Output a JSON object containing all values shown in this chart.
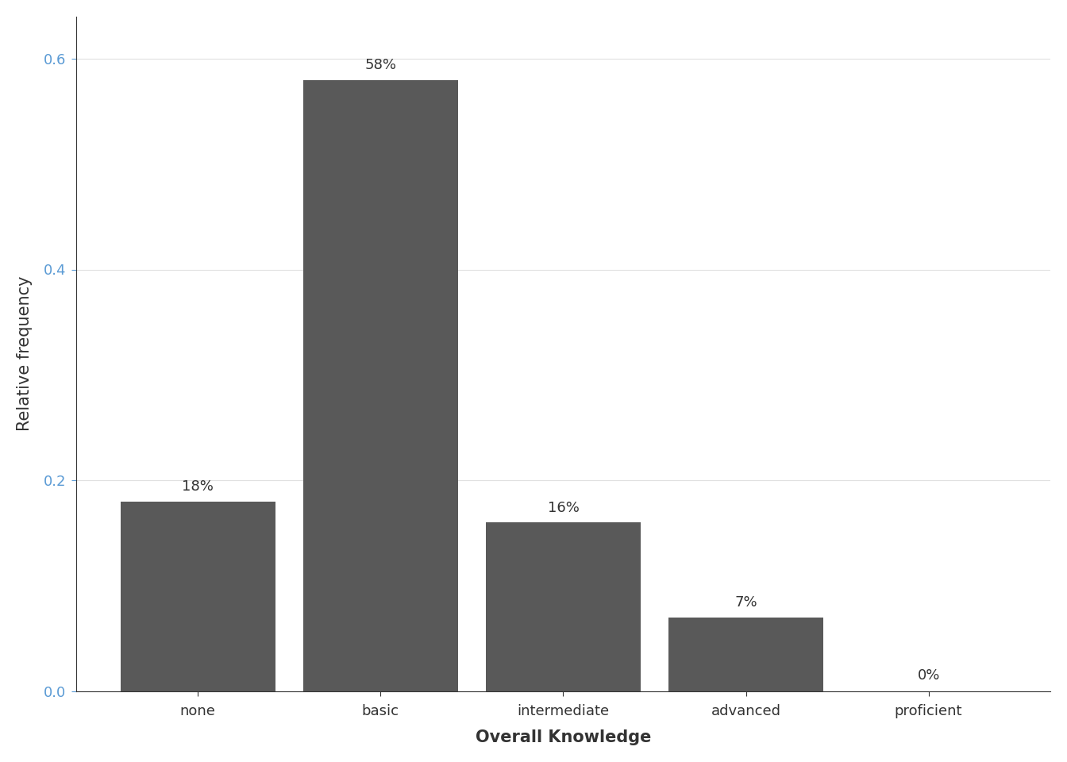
{
  "categories": [
    "none",
    "basic",
    "intermediate",
    "advanced",
    "proficient"
  ],
  "values": [
    0.18,
    0.58,
    0.16,
    0.07,
    0.0
  ],
  "labels": [
    "18%",
    "58%",
    "16%",
    "7%",
    "0%"
  ],
  "bar_color": "#595959",
  "xlabel": "Overall Knowledge",
  "ylabel": "Relative frequency",
  "ylim": [
    0,
    0.64
  ],
  "yticks": [
    0.0,
    0.2,
    0.4,
    0.6
  ],
  "background_color": "#ffffff",
  "panel_color": "#ffffff",
  "grid_color": "#e0e0e0",
  "x_tick_label_colors": [
    "#5b9bd5",
    "#5b9bd5",
    "#5b9bd5",
    "#595959",
    "#cc8833"
  ],
  "y_tick_label_color": "#5b9bd5",
  "label_fontsize": 13,
  "axis_label_fontsize": 15,
  "tick_fontsize": 13,
  "bar_width": 0.85
}
